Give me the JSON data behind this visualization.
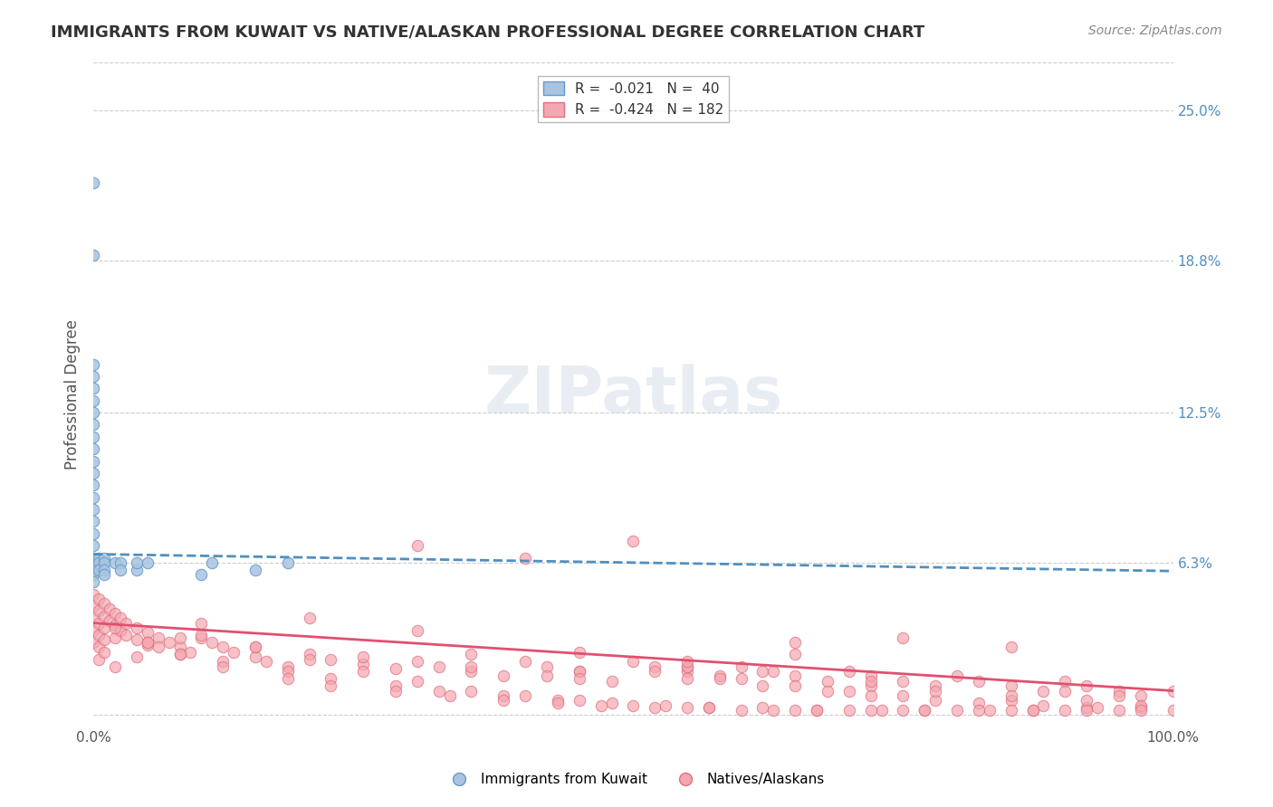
{
  "title": "IMMIGRANTS FROM KUWAIT VS NATIVE/ALASKAN PROFESSIONAL DEGREE CORRELATION CHART",
  "source_text": "Source: ZipAtlas.com",
  "xlabel": "",
  "ylabel": "Professional Degree",
  "x_tick_labels": [
    "0.0%",
    "100.0%"
  ],
  "y_tick_labels_right": [
    "25.0%",
    "18.8%",
    "12.5%",
    "6.3%",
    ""
  ],
  "y_tick_positions": [
    0.25,
    0.188,
    0.125,
    0.063,
    0.0
  ],
  "xlim": [
    0.0,
    1.0
  ],
  "ylim": [
    -0.005,
    0.27
  ],
  "legend_r1": "R =  -0.021",
  "legend_n1": "N =  40",
  "legend_r2": "R =  -0.424",
  "legend_n2": "N = 182",
  "color_blue": "#a8c4e0",
  "color_blue_line": "#4f8fbf",
  "color_pink": "#f4a7b0",
  "color_pink_line": "#e05070",
  "color_blue_edge": "#6699cc",
  "color_pink_edge": "#e07080",
  "watermark": "ZIPatlas",
  "watermark_zip": "ZIP",
  "background_color": "#ffffff",
  "grid_color": "#cccccc",
  "title_color": "#333333",
  "right_label_color": "#4f8fbf",
  "legend_box_color": "#f0f0ff",
  "blue_scatter_x": [
    0.0,
    0.0,
    0.0,
    0.0,
    0.0,
    0.0,
    0.0,
    0.0,
    0.0,
    0.0,
    0.0,
    0.0,
    0.0,
    0.0,
    0.0,
    0.0,
    0.0,
    0.0,
    0.0,
    0.0,
    0.0,
    0.0,
    0.0,
    0.005,
    0.005,
    0.005,
    0.01,
    0.01,
    0.01,
    0.01,
    0.02,
    0.025,
    0.025,
    0.04,
    0.04,
    0.05,
    0.1,
    0.11,
    0.15,
    0.18
  ],
  "blue_scatter_y": [
    0.22,
    0.19,
    0.145,
    0.14,
    0.135,
    0.13,
    0.125,
    0.12,
    0.115,
    0.11,
    0.105,
    0.1,
    0.095,
    0.09,
    0.085,
    0.08,
    0.075,
    0.07,
    0.065,
    0.062,
    0.06,
    0.058,
    0.055,
    0.065,
    0.063,
    0.06,
    0.065,
    0.063,
    0.06,
    0.058,
    0.063,
    0.063,
    0.06,
    0.06,
    0.063,
    0.063,
    0.058,
    0.063,
    0.06,
    0.063
  ],
  "pink_scatter_x": [
    0.0,
    0.0,
    0.0,
    0.0,
    0.0,
    0.005,
    0.005,
    0.005,
    0.005,
    0.005,
    0.005,
    0.01,
    0.01,
    0.01,
    0.01,
    0.01,
    0.015,
    0.015,
    0.02,
    0.02,
    0.02,
    0.025,
    0.025,
    0.03,
    0.03,
    0.04,
    0.04,
    0.05,
    0.05,
    0.06,
    0.07,
    0.08,
    0.09,
    0.1,
    0.11,
    0.12,
    0.13,
    0.15,
    0.16,
    0.18,
    0.2,
    0.22,
    0.25,
    0.28,
    0.3,
    0.32,
    0.35,
    0.38,
    0.4,
    0.42,
    0.45,
    0.5,
    0.52,
    0.55,
    0.58,
    0.6,
    0.62,
    0.65,
    0.68,
    0.7,
    0.72,
    0.75,
    0.78,
    0.8,
    0.82,
    0.85,
    0.88,
    0.9,
    0.92,
    0.95,
    0.97,
    1.0,
    0.3,
    0.4,
    0.5,
    0.6,
    0.65,
    0.7,
    0.72,
    0.55,
    0.35,
    0.45,
    0.55,
    0.65,
    0.75,
    0.85,
    0.9,
    0.95,
    0.85,
    0.75,
    0.65,
    0.55,
    0.45,
    0.3,
    0.2,
    0.1,
    0.08,
    0.06,
    0.04,
    0.02,
    0.15,
    0.25,
    0.35,
    0.42,
    0.48,
    0.52,
    0.58,
    0.62,
    0.68,
    0.72,
    0.78,
    0.82,
    0.88,
    0.92,
    0.05,
    0.08,
    0.12,
    0.18,
    0.22,
    0.28,
    0.32,
    0.38,
    0.43,
    0.48,
    0.53,
    0.57,
    0.63,
    0.67,
    0.73,
    0.77,
    0.83,
    0.87,
    0.93,
    0.97,
    0.45,
    0.55,
    0.63,
    0.72,
    0.78,
    0.85,
    0.92,
    0.97,
    0.1,
    0.15,
    0.2,
    0.25,
    0.3,
    0.35,
    0.4,
    0.45,
    0.5,
    0.55,
    0.6,
    0.65,
    0.7,
    0.75,
    0.8,
    0.85,
    0.9,
    0.95,
    1.0,
    0.02,
    0.05,
    0.08,
    0.12,
    0.18,
    0.22,
    0.28,
    0.33,
    0.38,
    0.43,
    0.47,
    0.52,
    0.57,
    0.62,
    0.67,
    0.72,
    0.77,
    0.82,
    0.87,
    0.92,
    0.97
  ],
  "pink_scatter_y": [
    0.05,
    0.045,
    0.04,
    0.035,
    0.03,
    0.048,
    0.043,
    0.038,
    0.033,
    0.028,
    0.023,
    0.046,
    0.041,
    0.036,
    0.031,
    0.026,
    0.044,
    0.039,
    0.042,
    0.037,
    0.032,
    0.04,
    0.035,
    0.038,
    0.033,
    0.036,
    0.031,
    0.034,
    0.029,
    0.032,
    0.03,
    0.028,
    0.026,
    0.032,
    0.03,
    0.028,
    0.026,
    0.024,
    0.022,
    0.02,
    0.025,
    0.023,
    0.021,
    0.019,
    0.022,
    0.02,
    0.018,
    0.016,
    0.022,
    0.02,
    0.018,
    0.022,
    0.02,
    0.018,
    0.016,
    0.02,
    0.018,
    0.016,
    0.014,
    0.018,
    0.016,
    0.014,
    0.012,
    0.016,
    0.014,
    0.012,
    0.01,
    0.014,
    0.012,
    0.01,
    0.008,
    0.01,
    0.07,
    0.065,
    0.072,
    0.015,
    0.03,
    0.01,
    0.012,
    0.02,
    0.025,
    0.018,
    0.015,
    0.012,
    0.008,
    0.006,
    0.01,
    0.008,
    0.028,
    0.032,
    0.025,
    0.02,
    0.015,
    0.035,
    0.04,
    0.038,
    0.032,
    0.028,
    0.024,
    0.02,
    0.028,
    0.024,
    0.02,
    0.016,
    0.014,
    0.018,
    0.015,
    0.012,
    0.01,
    0.008,
    0.006,
    0.005,
    0.004,
    0.003,
    0.03,
    0.025,
    0.022,
    0.018,
    0.015,
    0.012,
    0.01,
    0.008,
    0.006,
    0.005,
    0.004,
    0.003,
    0.002,
    0.002,
    0.002,
    0.002,
    0.002,
    0.002,
    0.003,
    0.003,
    0.026,
    0.022,
    0.018,
    0.014,
    0.01,
    0.008,
    0.006,
    0.004,
    0.033,
    0.028,
    0.023,
    0.018,
    0.014,
    0.01,
    0.008,
    0.006,
    0.004,
    0.003,
    0.002,
    0.002,
    0.002,
    0.002,
    0.002,
    0.002,
    0.002,
    0.002,
    0.002,
    0.036,
    0.03,
    0.025,
    0.02,
    0.015,
    0.012,
    0.01,
    0.008,
    0.006,
    0.005,
    0.004,
    0.003,
    0.003,
    0.003,
    0.002,
    0.002,
    0.002,
    0.002,
    0.002,
    0.002,
    0.002
  ],
  "blue_trend_x": [
    0.0,
    1.0
  ],
  "blue_trend_y": [
    0.0665,
    0.0595
  ],
  "pink_trend_x": [
    0.0,
    1.0
  ],
  "pink_trend_y": [
    0.038,
    0.01
  ]
}
